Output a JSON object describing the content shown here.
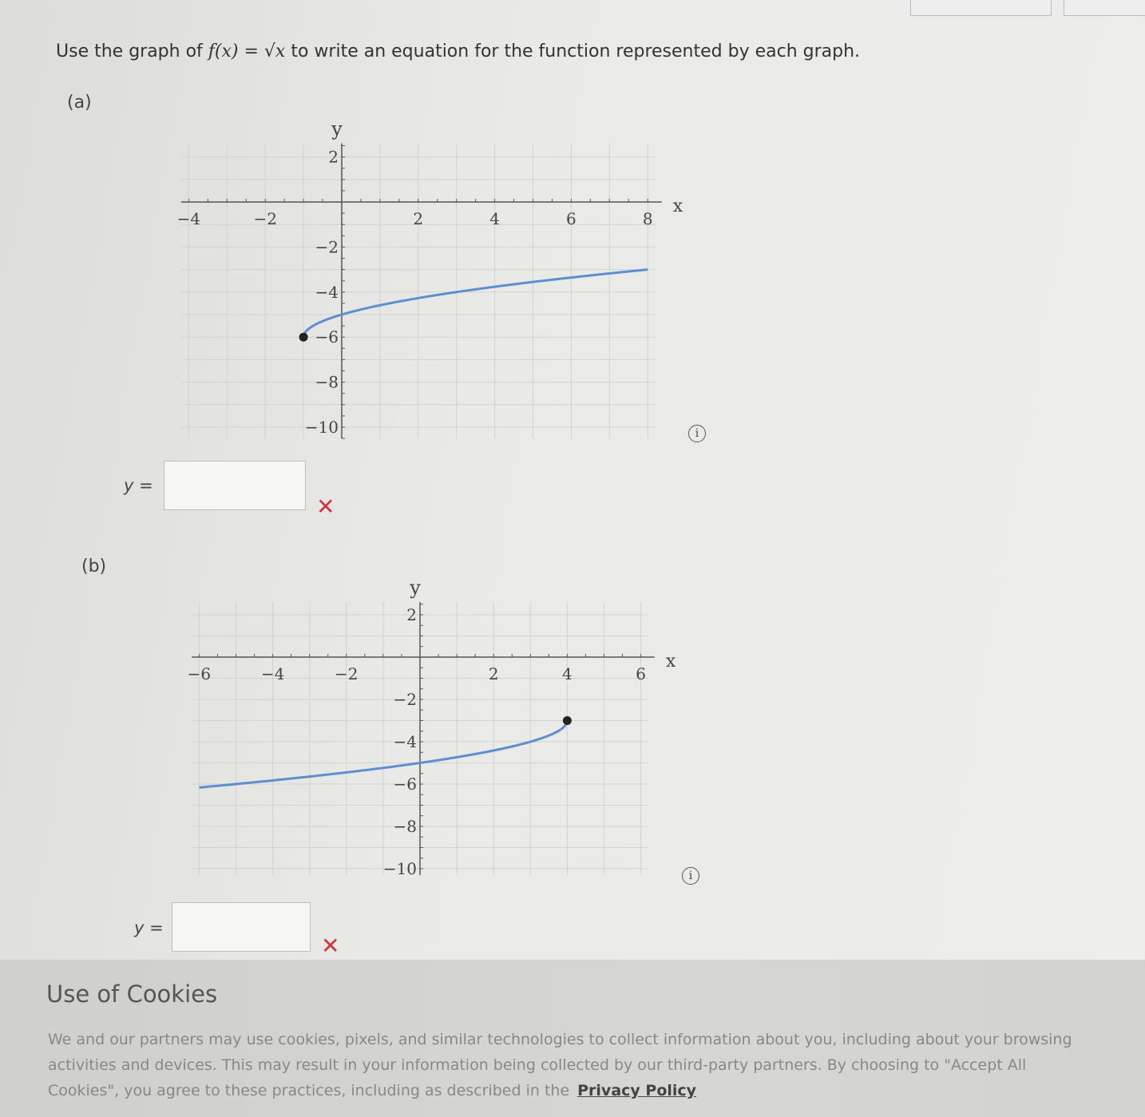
{
  "question": {
    "prefix": "Use the graph of ",
    "fx": "f(x) = √x",
    "suffix": " to write an equation for the function represented by each graph."
  },
  "parts": [
    {
      "label": "(a)",
      "answer_label": "y =",
      "answer_value": "",
      "status_icon": "incorrect-x-icon",
      "status_symbol": "✕",
      "info_symbol": "i"
    },
    {
      "label": "(b)",
      "answer_label": "y =",
      "answer_value": "",
      "status_icon": "incorrect-x-icon",
      "status_symbol": "✕",
      "info_symbol": "i"
    }
  ],
  "colors": {
    "curve": "#5b8fd0",
    "incorrect": "#d2323c",
    "point": "#222222"
  },
  "chart_data": [
    {
      "type": "line",
      "xlabel": "x",
      "ylabel": "y",
      "xlim": [
        -4.2,
        8.2
      ],
      "ylim": [
        -10.5,
        2.6
      ],
      "xticks": [
        -4,
        -2,
        2,
        4,
        6,
        8
      ],
      "yticks": [
        2,
        -2,
        -4,
        -6,
        -8,
        -10
      ],
      "grid": true,
      "x": [
        -1,
        0,
        1,
        2,
        3,
        4,
        5,
        6,
        7,
        8
      ],
      "y": [
        -6,
        -5,
        -4.59,
        -4.27,
        -4,
        -3.76,
        -3.55,
        -3.35,
        -3.17,
        -3
      ],
      "endpoint": [
        -1,
        -6
      ]
    },
    {
      "type": "line",
      "xlabel": "x",
      "ylabel": "y",
      "xlim": [
        -6.2,
        6.2
      ],
      "ylim": [
        -10.3,
        2.6
      ],
      "xticks": [
        -6,
        -4,
        -2,
        2,
        4,
        6
      ],
      "yticks": [
        2,
        -2,
        -4,
        -6,
        -8,
        -10
      ],
      "grid": true,
      "x": [
        4,
        3,
        2,
        1,
        0,
        -1,
        -2,
        -3,
        -4,
        -5,
        -6
      ],
      "y": [
        -3,
        -4,
        -4.41,
        -4.73,
        -5,
        -5.24,
        -5.45,
        -5.65,
        -5.83,
        -6,
        -6.16
      ],
      "endpoint": [
        4,
        -3
      ]
    }
  ],
  "cookie": {
    "title": "Use of Cookies",
    "text": "We and our partners may use cookies, pixels, and similar technologies to collect information about you, including about your browsing activities and devices. This may result in your information being collected by our third-party partners. By choosing to \"Accept All Cookies\", you agree to these practices, including as described in the",
    "link": "Privacy Policy"
  }
}
